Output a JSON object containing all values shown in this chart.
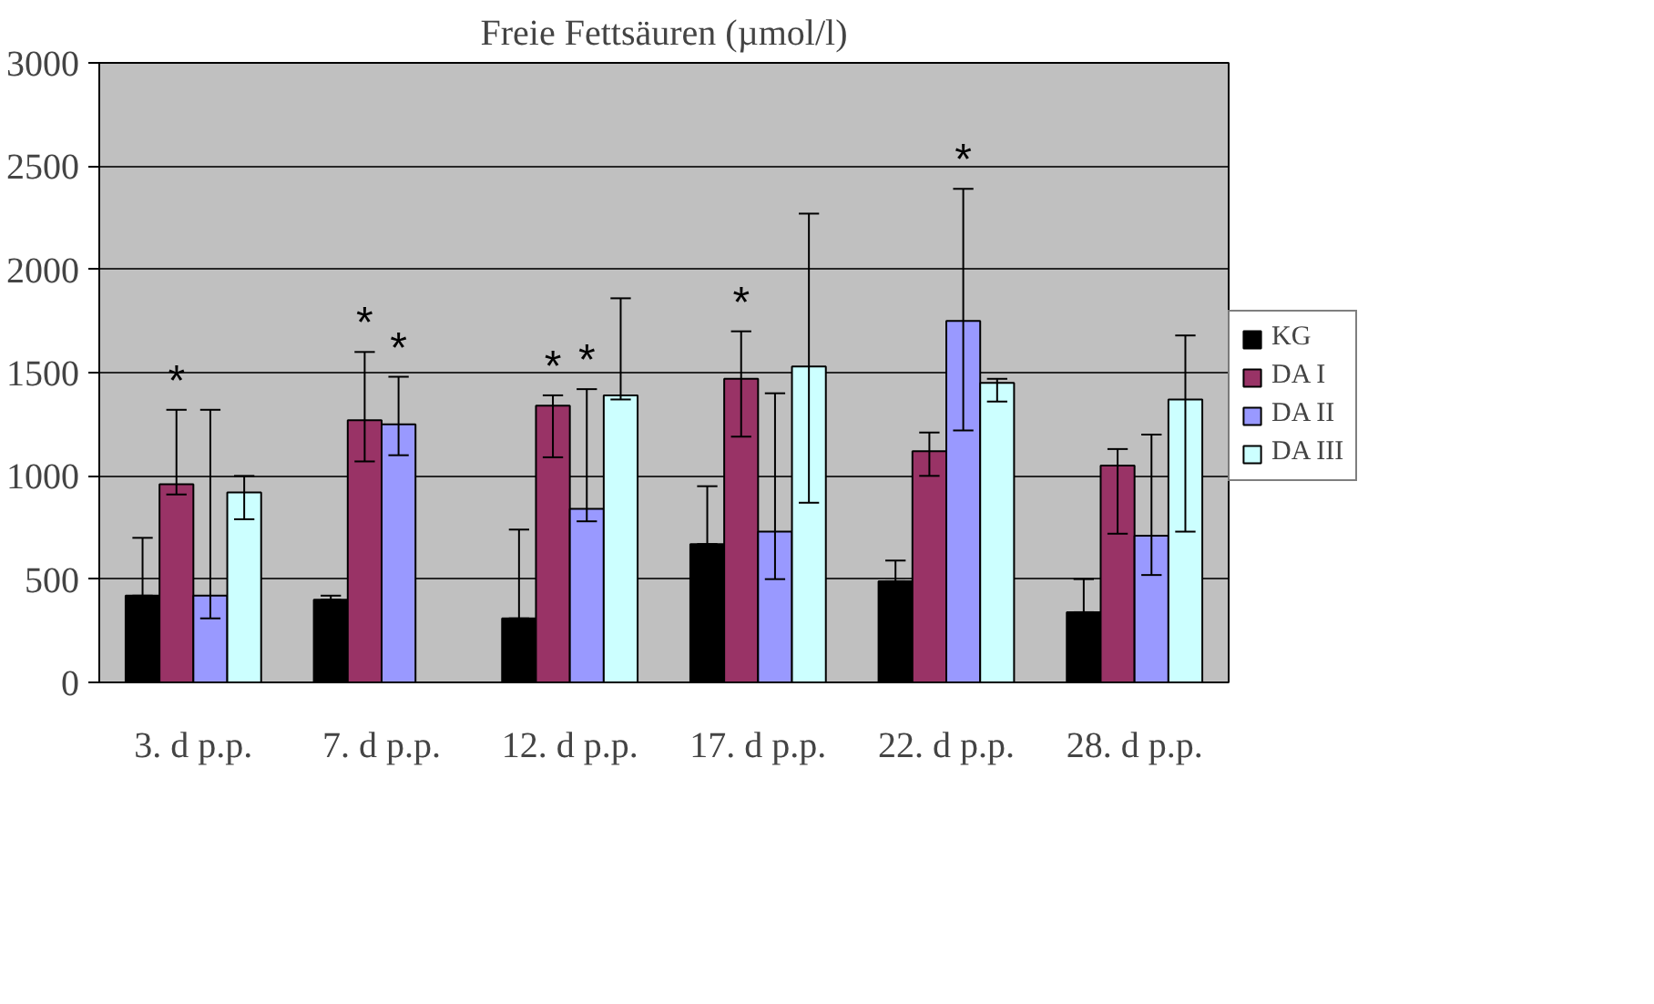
{
  "chart_data": {
    "type": "bar",
    "title": "Freie Fettsäuren (µmol/l)",
    "categories": [
      "3. d p.p.",
      "7. d p.p.",
      "12. d p.p.",
      "17. d p.p.",
      "22. d p.p.",
      "28. d p.p."
    ],
    "series": [
      {
        "name": "KG",
        "color": "#000000",
        "values": [
          420,
          400,
          310,
          670,
          490,
          340
        ],
        "errors": [
          [
            420,
            700
          ],
          [
            400,
            420
          ],
          [
            310,
            740
          ],
          [
            670,
            950
          ],
          [
            490,
            590
          ],
          [
            340,
            500
          ]
        ]
      },
      {
        "name": "DA I",
        "color": "#993366",
        "values": [
          960,
          1270,
          1340,
          1470,
          1120,
          1050
        ],
        "errors": [
          [
            910,
            1320
          ],
          [
            1070,
            1600
          ],
          [
            1090,
            1390
          ],
          [
            1190,
            1700
          ],
          [
            1000,
            1210
          ],
          [
            720,
            1130
          ]
        ],
        "value_labels": [
          "*",
          "*",
          "*",
          "*",
          null,
          null
        ]
      },
      {
        "name": "DA II",
        "color": "#9999ff",
        "values": [
          420,
          1250,
          840,
          730,
          1750,
          710
        ],
        "errors": [
          [
            310,
            1320
          ],
          [
            1100,
            1480
          ],
          [
            780,
            1420
          ],
          [
            500,
            1400
          ],
          [
            1220,
            2390
          ],
          [
            520,
            1200
          ]
        ],
        "value_labels": [
          null,
          "*",
          "*",
          null,
          "*",
          null
        ]
      },
      {
        "name": "DA III",
        "color": "#ccffff",
        "values": [
          920,
          null,
          1390,
          1530,
          1450,
          1370
        ],
        "errors": [
          [
            790,
            1000
          ],
          null,
          [
            1370,
            1860
          ],
          [
            870,
            2270
          ],
          [
            1360,
            1470
          ],
          [
            730,
            1680
          ]
        ]
      }
    ],
    "ylim": [
      0,
      3000
    ],
    "yticks": [
      0,
      500,
      1000,
      1500,
      2000,
      2500,
      3000
    ],
    "grid": "y",
    "legend": "right"
  }
}
